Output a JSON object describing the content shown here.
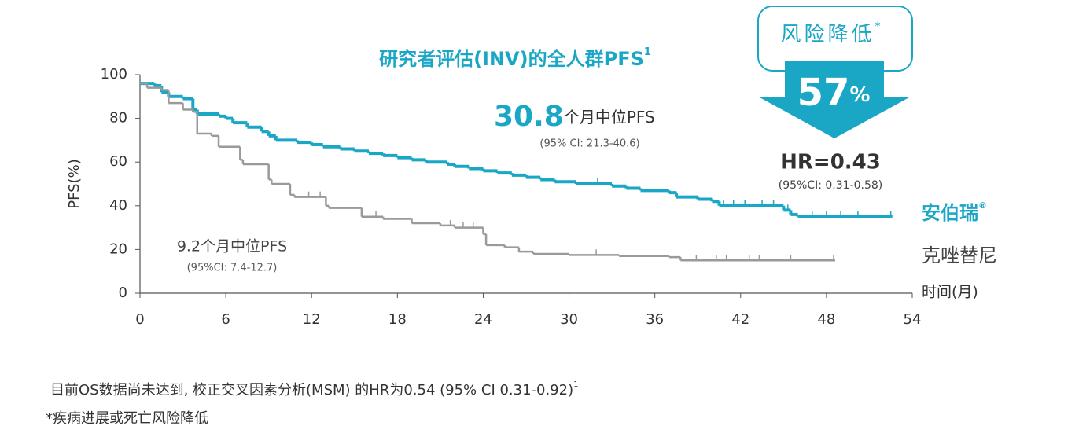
{
  "chart_data": {
    "type": "line",
    "step": true,
    "title": "研究者评估(INV)的全人群PFS",
    "title_sup": "1",
    "y_label": "PFS(%)",
    "x_label": "时间(月)",
    "xlim": [
      0,
      54
    ],
    "xticks": [
      0,
      6,
      12,
      18,
      24,
      30,
      36,
      42,
      48,
      54
    ],
    "ylim": [
      0,
      100
    ],
    "yticks": [
      0,
      20,
      40,
      60,
      80,
      100
    ],
    "series": [
      {
        "name": "安伯瑞",
        "name_sup": "®",
        "color": "#1aa7c6",
        "x": [
          0,
          1,
          1.5,
          2,
          3,
          3.7,
          4,
          5.5,
          6,
          6.5,
          7.5,
          8.5,
          9,
          9.5,
          11,
          12,
          12.8,
          14,
          15,
          16,
          17,
          18,
          19,
          20,
          21.5,
          22,
          23,
          24,
          25,
          26,
          27,
          28,
          29,
          30.5,
          33,
          34,
          35,
          37,
          37.5,
          39,
          40,
          40.5,
          45,
          45.5,
          46,
          52.5
        ],
        "values": [
          96,
          95,
          92,
          90,
          89,
          84,
          82,
          81,
          80,
          78,
          76,
          74,
          72,
          70,
          69,
          68,
          67,
          66,
          65,
          64,
          63,
          62,
          61,
          60,
          59,
          58,
          57,
          56,
          55,
          54,
          53,
          52,
          51,
          50,
          49,
          48,
          47,
          46,
          44,
          43,
          42,
          40,
          38,
          36,
          35,
          35
        ],
        "censored": [
          32,
          37.5,
          40.8,
          41.5,
          42.3,
          43.5,
          44.3,
          45.3,
          47,
          48,
          49,
          50.2,
          52.5
        ]
      },
      {
        "name": "克唑替尼",
        "color": "#9a9a9a",
        "x": [
          0,
          0.5,
          1.5,
          2,
          3,
          3.7,
          4,
          5,
          5.5,
          7,
          7.2,
          9,
          9.2,
          10.5,
          10.8,
          13,
          13.2,
          15.5,
          17,
          19,
          21,
          22,
          24,
          24.2,
          25.5,
          26.5,
          27.5,
          30,
          33.5,
          37,
          37.8,
          48.5
        ],
        "values": [
          96,
          94,
          93,
          87,
          84,
          83,
          73,
          72,
          67,
          61,
          59,
          52,
          50,
          45,
          44,
          40,
          39,
          35,
          34,
          32,
          31,
          30,
          27,
          22,
          21,
          19,
          18,
          17.5,
          17,
          16.5,
          15,
          15
        ],
        "censored": [
          11.8,
          12.6,
          16.5,
          21.7,
          22.6,
          23.3,
          31.9,
          38.9,
          40.3,
          41,
          42.6,
          43.3,
          45.5,
          48.5
        ]
      }
    ],
    "annotations": {
      "median_a_value": "30.8",
      "median_a_text": "个月中位PFS",
      "median_a_ci": "(95% CI: 21.3-40.6)",
      "median_b_text": "9.2个月中位PFS",
      "median_b_ci": "(95%CI: 7.4-12.7)",
      "badge_title": "风险降低",
      "badge_star": "*",
      "badge_value": "57",
      "badge_unit": "%",
      "hr": "HR=0.43",
      "hr_ci": "(95%CI: 0.31-0.58)"
    },
    "footnotes": {
      "line1": "目前OS数据尚未达到, 校正交叉因素分析(MSM) 的HR为0.54 (95% CI 0.31-0.92)",
      "line1_sup": "1",
      "line2": "*疾病进展或死亡风险降低"
    }
  }
}
